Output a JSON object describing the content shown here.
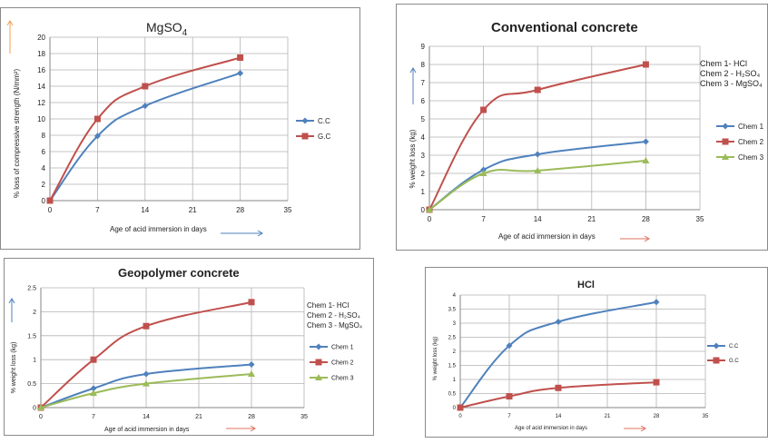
{
  "colors": {
    "blue": "#4f81bd",
    "red": "#c0504d",
    "green": "#9bbb59",
    "grid": "#b3b3b3",
    "axis": "#868686"
  },
  "chart_data": [
    {
      "id": "mgso4",
      "type": "line",
      "title": "MgSO",
      "title_sub": "4",
      "xlabel": "Age of acid immersion in days",
      "ylabel": "% loss of compressive strength (N/mm²)",
      "xlim": [
        0,
        35
      ],
      "ylim": [
        0,
        20
      ],
      "xticks": [
        0,
        7,
        14,
        21,
        28,
        35
      ],
      "yticks": [
        0,
        2,
        4,
        6,
        8,
        10,
        12,
        14,
        16,
        18,
        20
      ],
      "x": [
        0,
        7,
        14,
        28
      ],
      "series": [
        {
          "name": "C.C",
          "color": "#4f81bd",
          "marker": "diamond",
          "values": [
            0,
            7.9,
            11.6,
            15.6
          ]
        },
        {
          "name": "G.C",
          "color": "#c0504d",
          "marker": "square",
          "values": [
            0,
            10,
            14,
            17.5
          ]
        }
      ],
      "legend": "right"
    },
    {
      "id": "conventional",
      "type": "line",
      "title": "Conventional concrete",
      "xlabel": "Age of acid immersion in days",
      "ylabel": "% weight loss (kg)",
      "xlim": [
        0,
        35
      ],
      "ylim": [
        0,
        9
      ],
      "xticks": [
        0,
        7,
        14,
        21,
        28,
        35
      ],
      "yticks": [
        0,
        1,
        2,
        3,
        4,
        5,
        6,
        7,
        8,
        9
      ],
      "x": [
        0,
        7,
        14,
        28
      ],
      "series": [
        {
          "name": "Chem 1",
          "color": "#4f81bd",
          "marker": "diamond",
          "values": [
            0,
            2.2,
            3.05,
            3.75
          ]
        },
        {
          "name": "Chem 2",
          "color": "#c0504d",
          "marker": "square",
          "values": [
            0,
            5.5,
            6.6,
            8
          ]
        },
        {
          "name": "Chem 3",
          "color": "#9bbb59",
          "marker": "triangle",
          "values": [
            0,
            2,
            2.15,
            2.7
          ]
        }
      ],
      "notes": [
        "Chem 1- HCl",
        "Chem 2 - H₂SO₄",
        "Chem 3 - MgSO₄"
      ],
      "legend": "right"
    },
    {
      "id": "geopolymer",
      "type": "line",
      "title": "Geopolymer concrete",
      "xlabel": "Age of acid immersion in days",
      "ylabel": "% weight loss (kg)",
      "xlim": [
        0,
        35
      ],
      "ylim": [
        0,
        2.5
      ],
      "xticks": [
        0,
        7,
        14,
        21,
        28,
        35
      ],
      "yticks": [
        0,
        0.5,
        1,
        1.5,
        2,
        2.5
      ],
      "x": [
        0,
        7,
        14,
        28
      ],
      "series": [
        {
          "name": "Chem 1",
          "color": "#4f81bd",
          "marker": "diamond",
          "values": [
            0,
            0.4,
            0.7,
            0.9
          ]
        },
        {
          "name": "Chem 2",
          "color": "#c0504d",
          "marker": "square",
          "values": [
            0,
            1,
            1.7,
            2.2
          ]
        },
        {
          "name": "Chem 3",
          "color": "#9bbb59",
          "marker": "triangle",
          "values": [
            0,
            0.3,
            0.5,
            0.7
          ]
        }
      ],
      "notes": [
        "Chem 1- HCl",
        "Chem 2 - H₂SO₄",
        "Chem 3 - MgSO₄"
      ],
      "legend": "right"
    },
    {
      "id": "hcl",
      "type": "line",
      "title": "HCl",
      "xlabel": "Age of acid immersion in days",
      "ylabel": "% weight loss (kg)",
      "xlim": [
        0,
        35
      ],
      "ylim": [
        0,
        4
      ],
      "xticks": [
        0,
        7,
        14,
        21,
        28,
        35
      ],
      "yticks": [
        0,
        0.5,
        1,
        1.5,
        2,
        2.5,
        3,
        3.5,
        4
      ],
      "x": [
        0,
        7,
        14,
        28
      ],
      "series": [
        {
          "name": "C.C",
          "color": "#4f81bd",
          "marker": "diamond",
          "values": [
            0,
            2.2,
            3.05,
            3.75
          ]
        },
        {
          "name": "G.C",
          "color": "#c0504d",
          "marker": "square",
          "values": [
            0,
            0.4,
            0.7,
            0.9
          ]
        }
      ],
      "legend": "right"
    }
  ]
}
